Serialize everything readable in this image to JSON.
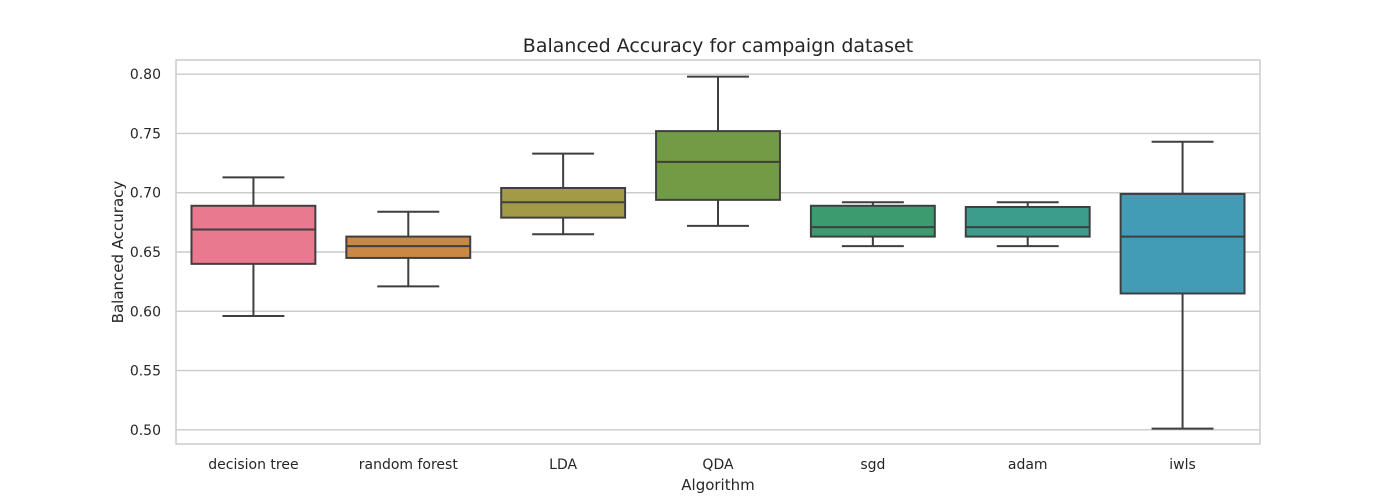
{
  "chart_data": {
    "type": "box",
    "title": "Balanced Accuracy for campaign dataset",
    "xlabel": "Algorithm",
    "ylabel": "Balanced Accuracy",
    "ylim": [
      0.488,
      0.812
    ],
    "yticks": [
      0.5,
      0.55,
      0.6,
      0.65,
      0.7,
      0.75,
      0.8
    ],
    "ytick_labels": [
      "0.50",
      "0.55",
      "0.60",
      "0.65",
      "0.70",
      "0.75",
      "0.80"
    ],
    "grid": true,
    "categories": [
      "decision tree",
      "random forest",
      "LDA",
      "QDA",
      "sgd",
      "adam",
      "iwls"
    ],
    "boxes": [
      {
        "label": "decision tree",
        "whisker_low": 0.596,
        "q1": 0.64,
        "median": 0.669,
        "q3": 0.689,
        "whisker_high": 0.713,
        "color": "#E8798F"
      },
      {
        "label": "random forest",
        "whisker_low": 0.621,
        "q1": 0.645,
        "median": 0.655,
        "q3": 0.663,
        "whisker_high": 0.684,
        "color": "#C98843"
      },
      {
        "label": "LDA",
        "whisker_low": 0.665,
        "q1": 0.679,
        "median": 0.692,
        "q3": 0.704,
        "whisker_high": 0.733,
        "color": "#A39A47"
      },
      {
        "label": "QDA",
        "whisker_low": 0.672,
        "q1": 0.694,
        "median": 0.726,
        "q3": 0.752,
        "whisker_high": 0.798,
        "color": "#729B45"
      },
      {
        "label": "sgd",
        "whisker_low": 0.655,
        "q1": 0.663,
        "median": 0.671,
        "q3": 0.689,
        "whisker_high": 0.692,
        "color": "#3C9B6F"
      },
      {
        "label": "adam",
        "whisker_low": 0.655,
        "q1": 0.663,
        "median": 0.671,
        "q3": 0.688,
        "whisker_high": 0.692,
        "color": "#3C9D8C"
      },
      {
        "label": "iwls",
        "whisker_low": 0.501,
        "q1": 0.615,
        "median": 0.663,
        "q3": 0.699,
        "whisker_high": 0.743,
        "color": "#439CB5"
      }
    ]
  }
}
